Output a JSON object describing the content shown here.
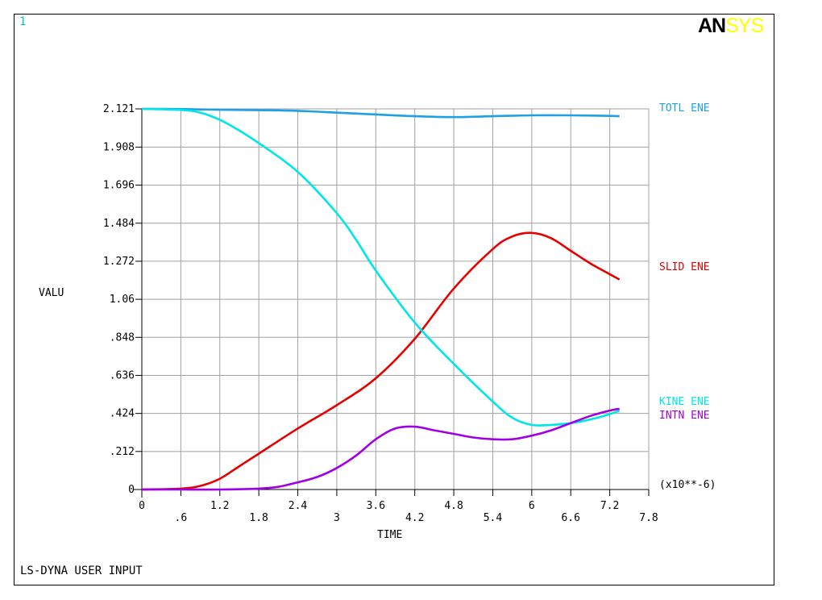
{
  "window_number": "1",
  "logo": {
    "part1": "AN",
    "part2": "SYS"
  },
  "footer_text": "LS-DYNA USER INPUT",
  "chart_data": {
    "type": "line",
    "xlabel": "TIME",
    "ylabel": "VALU",
    "x_multiplier_label": "(x10**-6)",
    "xlim": [
      0,
      7.8
    ],
    "ylim": [
      0,
      2.121
    ],
    "x_ticks": [
      "0",
      ".6",
      "1.2",
      "1.8",
      "2.4",
      "3",
      "3.6",
      "4.2",
      "4.8",
      "5.4",
      "6",
      "6.6",
      "7.2",
      "7.8"
    ],
    "y_ticks": [
      "0",
      ".212",
      ".424",
      ".636",
      ".848",
      "1.06",
      "1.272",
      "1.484",
      "1.696",
      "1.908",
      "2.121"
    ],
    "grid": true,
    "series": [
      {
        "name": "TOTL ENE",
        "color": "#1ea0e6",
        "x": [
          0,
          0.6,
          1.2,
          1.8,
          2.4,
          3.0,
          3.6,
          4.2,
          4.8,
          5.4,
          6.0,
          6.6,
          7.2,
          7.35
        ],
        "y": [
          2.121,
          2.12,
          2.116,
          2.114,
          2.11,
          2.1,
          2.09,
          2.08,
          2.075,
          2.08,
          2.085,
          2.085,
          2.082,
          2.08
        ]
      },
      {
        "name": "SLID ENE",
        "color": "#e60000",
        "x": [
          0,
          0.6,
          0.9,
          1.2,
          1.5,
          1.8,
          2.4,
          3.0,
          3.6,
          4.2,
          4.8,
          5.4,
          5.7,
          6.0,
          6.3,
          6.6,
          6.9,
          7.2,
          7.35
        ],
        "y": [
          0,
          0.005,
          0.02,
          0.06,
          0.13,
          0.2,
          0.34,
          0.47,
          0.62,
          0.84,
          1.12,
          1.34,
          1.41,
          1.43,
          1.4,
          1.33,
          1.26,
          1.2,
          1.17
        ]
      },
      {
        "name": "KINE ENE",
        "color": "#00e6e6",
        "x": [
          0,
          0.6,
          0.9,
          1.2,
          1.5,
          1.8,
          2.4,
          3.0,
          3.3,
          3.6,
          4.2,
          4.8,
          5.4,
          5.7,
          6.0,
          6.3,
          6.6,
          6.9,
          7.2,
          7.35
        ],
        "y": [
          2.121,
          2.115,
          2.1,
          2.06,
          2.0,
          1.93,
          1.77,
          1.54,
          1.39,
          1.22,
          0.93,
          0.7,
          0.49,
          0.4,
          0.36,
          0.36,
          0.37,
          0.39,
          0.42,
          0.44
        ]
      },
      {
        "name": "INTN ENE",
        "color": "#a000e6",
        "x": [
          0,
          0.6,
          1.2,
          1.8,
          2.1,
          2.4,
          2.7,
          3.0,
          3.3,
          3.6,
          3.9,
          4.2,
          4.5,
          4.8,
          5.1,
          5.4,
          5.7,
          6.0,
          6.3,
          6.6,
          6.9,
          7.2,
          7.35
        ],
        "y": [
          0,
          0,
          0,
          0.005,
          0.015,
          0.04,
          0.07,
          0.12,
          0.19,
          0.28,
          0.34,
          0.35,
          0.33,
          0.31,
          0.29,
          0.28,
          0.28,
          0.3,
          0.33,
          0.37,
          0.41,
          0.44,
          0.45
        ]
      }
    ]
  }
}
